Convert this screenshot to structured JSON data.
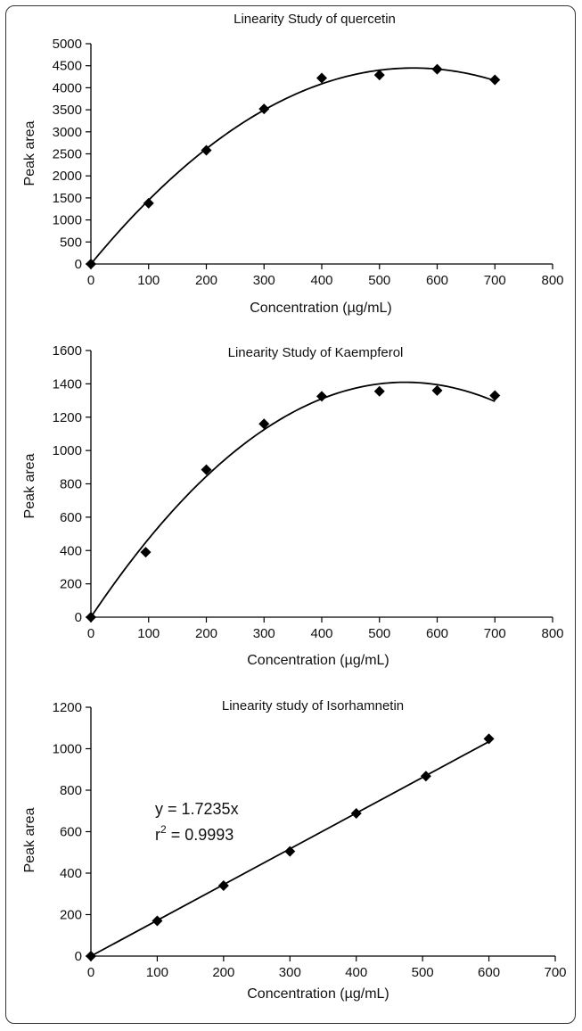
{
  "chart_data": [
    {
      "type": "scatter",
      "title": "Linearity Study of quercetin",
      "xlabel": "Concentration (µg/mL)",
      "ylabel": "Peak area",
      "xlim": [
        0,
        800
      ],
      "ylim": [
        0,
        5000
      ],
      "xticks": [
        "0",
        "100",
        "200",
        "300",
        "400",
        "500",
        "600",
        "700",
        "800"
      ],
      "yticks": [
        "0",
        "500",
        "1000",
        "1500",
        "2000",
        "2500",
        "3000",
        "3500",
        "4000",
        "4500",
        "5000"
      ],
      "trendline": "polynomial",
      "series": [
        {
          "x": [
            0,
            100,
            200,
            300,
            400,
            500,
            600,
            700
          ],
          "y": [
            0,
            1380,
            2580,
            3520,
            4220,
            4290,
            4420,
            4180
          ]
        }
      ]
    },
    {
      "type": "scatter",
      "title": "Linearity Study of Kaempferol",
      "xlabel": "Concentration (µg/mL)",
      "ylabel": "Peak area",
      "xlim": [
        0,
        800
      ],
      "ylim": [
        0,
        1600
      ],
      "xticks": [
        "0",
        "100",
        "200",
        "300",
        "400",
        "500",
        "600",
        "700",
        "800"
      ],
      "yticks": [
        "0",
        "200",
        "400",
        "600",
        "800",
        "1000",
        "1200",
        "1400",
        "1600"
      ],
      "trendline": "polynomial",
      "series": [
        {
          "x": [
            0,
            95,
            200,
            300,
            400,
            500,
            600,
            700
          ],
          "y": [
            0,
            390,
            885,
            1160,
            1325,
            1355,
            1360,
            1330
          ]
        }
      ]
    },
    {
      "type": "scatter",
      "title": "Linearity study of Isorhamnetin",
      "xlabel": "Concentration (µg/mL)",
      "ylabel": "Peak area",
      "xlim": [
        0,
        700
      ],
      "ylim": [
        0,
        1200
      ],
      "xticks": [
        "0",
        "100",
        "200",
        "300",
        "400",
        "500",
        "600",
        "700"
      ],
      "yticks": [
        "0",
        "200",
        "400",
        "600",
        "800",
        "1000",
        "1200"
      ],
      "trendline": "linear",
      "slope": 1.7235,
      "annotation": [
        "y = 1.7235x",
        "r",
        "2",
        " = 0.9993"
      ],
      "series": [
        {
          "x": [
            0,
            100,
            200,
            300,
            400,
            505,
            600
          ],
          "y": [
            0,
            170,
            340,
            505,
            688,
            868,
            1048
          ]
        }
      ]
    }
  ]
}
